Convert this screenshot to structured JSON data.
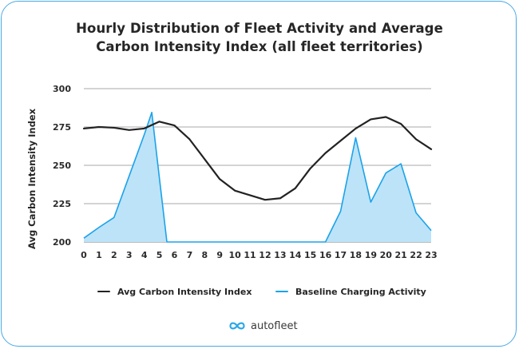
{
  "chart_data": {
    "type": "line",
    "title_lines": [
      "Hourly Distribution of Fleet Activity and Average",
      "Carbon Intensity Index (all fleet territories)"
    ],
    "ylabel": "Avg Carbon Intensity Index",
    "xlabel": "",
    "ylim": [
      200,
      300
    ],
    "yticks": [
      "200",
      "225",
      "250",
      "275",
      "300"
    ],
    "xticks": [
      "0",
      "1",
      "2",
      "3",
      "4",
      "5",
      "6",
      "7",
      "8",
      "9",
      "10",
      "11",
      "12",
      "13",
      "14",
      "15",
      "16",
      "17",
      "18",
      "19",
      "20",
      "21",
      "22",
      "23"
    ],
    "grid": "horizontal",
    "legend_position": "bottom",
    "series": [
      {
        "name": "Avg Carbon Intensity Index",
        "kind": "line",
        "color": "#222222",
        "x": [
          0,
          1,
          2,
          3,
          4,
          5,
          6,
          7,
          8,
          9,
          10,
          11,
          12,
          13,
          14,
          15,
          16,
          17,
          18,
          19,
          20,
          21,
          22,
          23
        ],
        "values": [
          274,
          275,
          274.5,
          273,
          274,
          278.5,
          276,
          267,
          254,
          241,
          233.5,
          230.5,
          227.5,
          228.5,
          235,
          248,
          258,
          266,
          274,
          280,
          281.5,
          277,
          267,
          260.5
        ]
      },
      {
        "name": "Baseline Charging Activity",
        "kind": "area",
        "color": "#1aa3ea",
        "fill": "#bde3f8",
        "x": [
          0,
          1,
          2,
          3,
          4,
          4.5,
          5,
          5.5,
          6,
          7,
          8,
          9,
          10,
          11,
          12,
          13,
          14,
          15,
          16,
          17,
          18,
          19,
          20,
          21,
          22,
          23
        ],
        "values": [
          202.5,
          209.5,
          216,
          243,
          270,
          284.5,
          242,
          200,
          200,
          200,
          200,
          200,
          200,
          200,
          200,
          200,
          200,
          200,
          200,
          220,
          268,
          226,
          245,
          251,
          219,
          207.5
        ]
      }
    ]
  },
  "brand": {
    "name": "autofleet",
    "logo_icon": "infinity-logo-icon",
    "logo_color": "#2da8e8"
  },
  "card_border_color": "#4aa9e6"
}
